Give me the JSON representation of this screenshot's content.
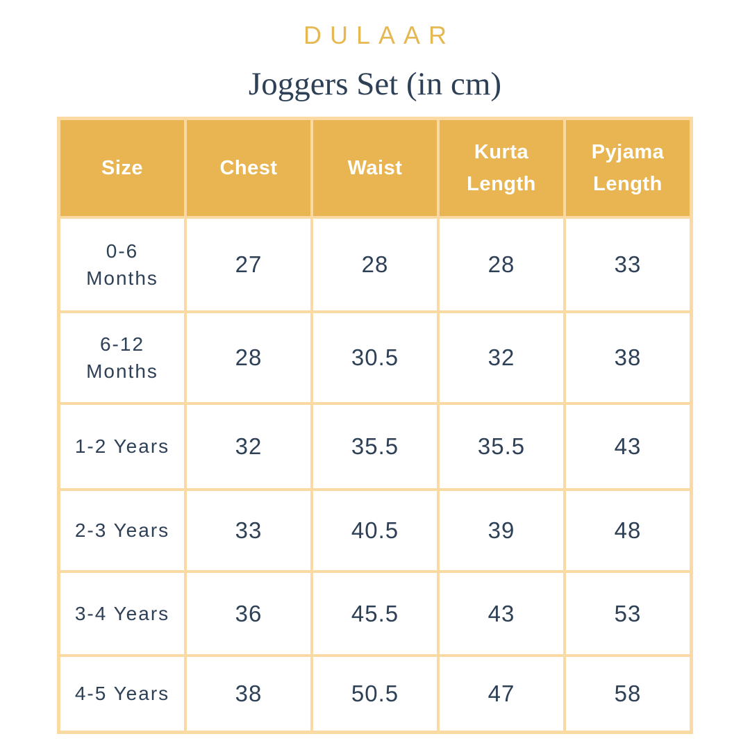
{
  "brand": {
    "name": "DULAAR"
  },
  "page": {
    "title": "Joggers Set (in cm)"
  },
  "colors": {
    "brand_gold": "#E5B851",
    "header_background": "#E8B552",
    "grid_border": "#FBD9A2",
    "text_navy": "#2E4056",
    "header_text": "#FFFFFF",
    "page_background": "#FFFFFF"
  },
  "chart_data": {
    "type": "table",
    "title": "Joggers Set (in cm)",
    "unit": "cm",
    "columns": [
      "Size",
      "Chest",
      "Waist",
      "Kurta\nLength",
      "Pyjama\nLength"
    ],
    "rows": [
      [
        "0-6\nMonths",
        27,
        28,
        28,
        33
      ],
      [
        "6-12\nMonths",
        28,
        30.5,
        32,
        38
      ],
      [
        "1-2 Years",
        32,
        35.5,
        35.5,
        43
      ],
      [
        "2-3 Years",
        33,
        40.5,
        39,
        48
      ],
      [
        "3-4 Years",
        36,
        45.5,
        43,
        53
      ],
      [
        "4-5 Years",
        38,
        50.5,
        47,
        58
      ]
    ]
  }
}
